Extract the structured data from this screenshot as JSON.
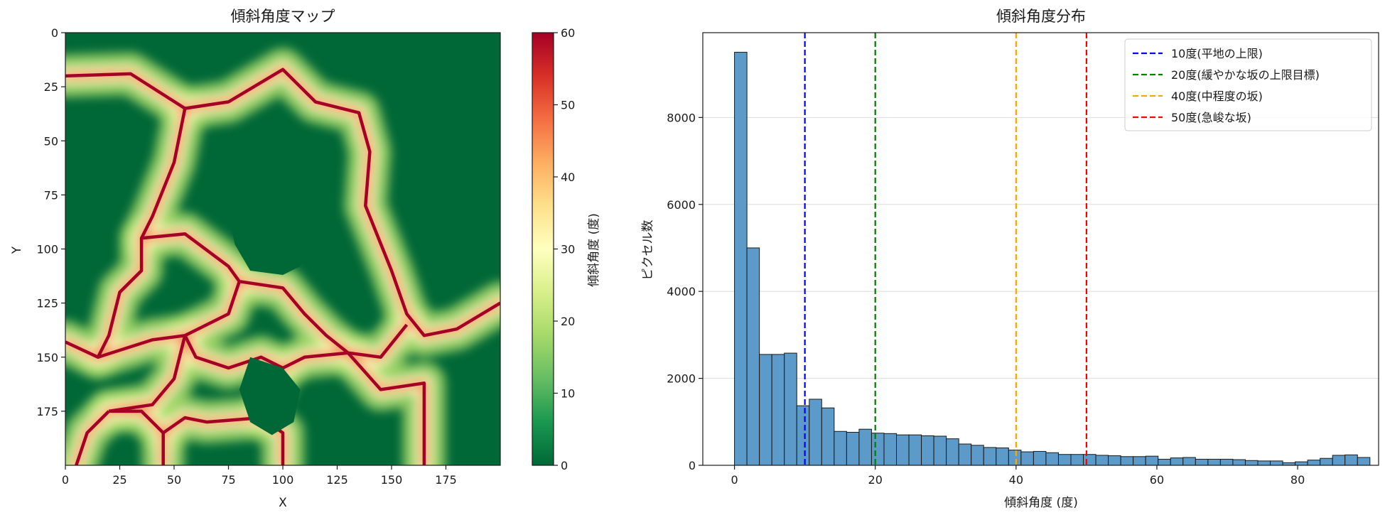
{
  "chart_data": [
    {
      "type": "heatmap",
      "title": "傾斜角度マップ",
      "xlabel": "X",
      "ylabel": "Y",
      "xlim": [
        0,
        200
      ],
      "ylim": [
        200,
        0
      ],
      "x_ticks": [
        0,
        25,
        50,
        75,
        100,
        125,
        150,
        175
      ],
      "y_ticks": [
        0,
        25,
        50,
        75,
        100,
        125,
        150,
        175
      ],
      "colormap": "RdYlGn_r",
      "colorbar": {
        "label": "傾斜角度 (度)",
        "range": [
          0,
          60
        ],
        "ticks": [
          0,
          10,
          20,
          30,
          40,
          50,
          60
        ],
        "colors": [
          "#006837",
          "#1a9850",
          "#66bd63",
          "#a6d96a",
          "#d9ef8b",
          "#ffffbf",
          "#fee08b",
          "#fdae61",
          "#f46d43",
          "#d73027",
          "#a50026"
        ]
      },
      "ridges": [
        [
          [
            0,
            20
          ],
          [
            30,
            19
          ],
          [
            55,
            35
          ],
          [
            75,
            32
          ],
          [
            100,
            17
          ],
          [
            115,
            32
          ],
          [
            135,
            37
          ],
          [
            140,
            55
          ],
          [
            138,
            80
          ],
          [
            150,
            110
          ],
          [
            157,
            130
          ],
          [
            165,
            140
          ],
          [
            180,
            137
          ],
          [
            200,
            125
          ]
        ],
        [
          [
            55,
            35
          ],
          [
            50,
            60
          ],
          [
            40,
            85
          ],
          [
            35,
            95
          ],
          [
            35,
            110
          ],
          [
            25,
            120
          ],
          [
            20,
            140
          ],
          [
            15,
            150
          ],
          [
            0,
            143
          ]
        ],
        [
          [
            35,
            95
          ],
          [
            55,
            93
          ],
          [
            75,
            108
          ],
          [
            80,
            115
          ],
          [
            75,
            130
          ],
          [
            55,
            140
          ],
          [
            40,
            142
          ],
          [
            15,
            150
          ]
        ],
        [
          [
            80,
            115
          ],
          [
            100,
            118
          ],
          [
            110,
            130
          ],
          [
            120,
            140
          ],
          [
            130,
            148
          ],
          [
            145,
            150
          ],
          [
            157,
            135
          ]
        ],
        [
          [
            55,
            140
          ],
          [
            60,
            150
          ],
          [
            75,
            155
          ],
          [
            90,
            150
          ],
          [
            100,
            155
          ],
          [
            110,
            150
          ],
          [
            130,
            148
          ]
        ],
        [
          [
            130,
            148
          ],
          [
            145,
            165
          ],
          [
            165,
            162
          ],
          [
            165,
            200
          ]
        ],
        [
          [
            20,
            175
          ],
          [
            10,
            185
          ],
          [
            5,
            200
          ]
        ],
        [
          [
            20,
            175
          ],
          [
            35,
            175
          ],
          [
            45,
            185
          ],
          [
            45,
            200
          ]
        ],
        [
          [
            45,
            185
          ],
          [
            55,
            178
          ],
          [
            65,
            180
          ],
          [
            90,
            178
          ],
          [
            100,
            185
          ],
          [
            100,
            200
          ]
        ],
        [
          [
            55,
            140
          ],
          [
            50,
            160
          ],
          [
            40,
            172
          ],
          [
            20,
            175
          ]
        ],
        [
          [
            100,
            155
          ],
          [
            95,
            165
          ],
          [
            90,
            178
          ]
        ]
      ],
      "plateaus": [
        [
          [
            75,
            67
          ],
          [
            100,
            70
          ],
          [
            110,
            80
          ],
          [
            113,
            95
          ],
          [
            108,
            108
          ],
          [
            100,
            112
          ],
          [
            85,
            110
          ],
          [
            78,
            98
          ],
          [
            75,
            85
          ]
        ],
        [
          [
            85,
            150
          ],
          [
            100,
            155
          ],
          [
            108,
            165
          ],
          [
            105,
            180
          ],
          [
            95,
            186
          ],
          [
            85,
            180
          ],
          [
            80,
            165
          ]
        ]
      ]
    },
    {
      "type": "bar",
      "title": "傾斜角度分布",
      "xlabel": "傾斜角度 (度)",
      "ylabel": "ピクセル数",
      "xlim": [
        -4.5,
        91.5
      ],
      "ylim": [
        0,
        9950
      ],
      "x_ticks": [
        0,
        20,
        40,
        60,
        80
      ],
      "y_ticks": [
        0,
        2000,
        4000,
        6000,
        8000
      ],
      "grid": "y",
      "bin_width": 1.77,
      "bin_start": 0,
      "values": [
        9500,
        5000,
        2550,
        2550,
        2580,
        1370,
        1520,
        1320,
        780,
        760,
        830,
        740,
        730,
        700,
        700,
        680,
        670,
        610,
        490,
        460,
        410,
        400,
        350,
        310,
        320,
        290,
        250,
        250,
        250,
        230,
        220,
        200,
        200,
        210,
        140,
        170,
        180,
        140,
        140,
        140,
        130,
        110,
        100,
        100,
        60,
        80,
        120,
        160,
        230,
        240,
        180
      ],
      "bar_color": "#5b9ac9",
      "edge_color": "#1a1a1a",
      "vlines": [
        {
          "x": 10,
          "label": "10度(平地の上限)",
          "color": "#0000ff"
        },
        {
          "x": 20,
          "label": "20度(緩やかな坂の上限目標)",
          "color": "#008000"
        },
        {
          "x": 40,
          "label": "40度(中程度の坂)",
          "color": "#ffa500"
        },
        {
          "x": 50,
          "label": "50度(急峻な坂)",
          "color": "#ff0000"
        }
      ],
      "legend": "top-right"
    }
  ]
}
